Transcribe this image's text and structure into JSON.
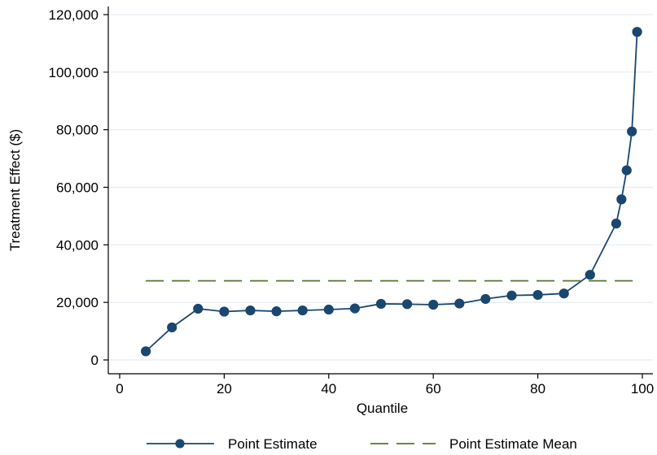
{
  "chart_data": {
    "type": "line",
    "title": "",
    "xlabel": "Quantile",
    "ylabel": "Treatment Effect ($)",
    "xlim": [
      0,
      100
    ],
    "ylim": [
      0,
      120000
    ],
    "x_ticks": [
      0,
      20,
      40,
      60,
      80,
      100
    ],
    "y_ticks": [
      0,
      20000,
      40000,
      60000,
      80000,
      100000,
      120000
    ],
    "x_tick_labels": [
      "0",
      "20",
      "40",
      "60",
      "80",
      "100"
    ],
    "y_tick_labels": [
      "0",
      "20,000",
      "40,000",
      "60,000",
      "80,000",
      "100,000",
      "120,000"
    ],
    "grid": "horizontal",
    "legend_position": "bottom",
    "series": [
      {
        "name": "Point Estimate",
        "style": "line-with-markers",
        "color": "#1a476f",
        "x": [
          5,
          10,
          15,
          20,
          25,
          30,
          35,
          40,
          45,
          50,
          55,
          60,
          65,
          70,
          75,
          80,
          85,
          90,
          95,
          96,
          97,
          98,
          99
        ],
        "y": [
          3000,
          11300,
          17800,
          16800,
          17200,
          16900,
          17200,
          17500,
          17900,
          19500,
          19400,
          19200,
          19600,
          21200,
          22400,
          22600,
          23100,
          29600,
          47400,
          55800,
          65900,
          79400,
          114000
        ]
      },
      {
        "name": "Point Estimate Mean",
        "style": "dashed-line",
        "color": "#55752f",
        "x": [
          5,
          99
        ],
        "y": [
          27500,
          27500
        ]
      }
    ]
  }
}
